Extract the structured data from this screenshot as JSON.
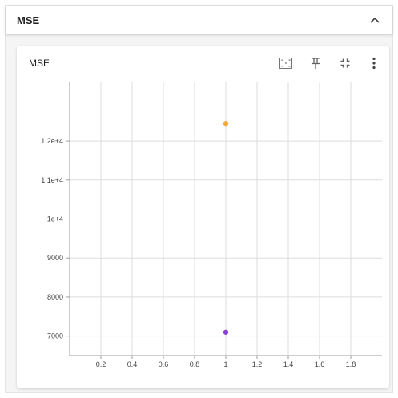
{
  "section": {
    "title": "MSE"
  },
  "card": {
    "title": "MSE",
    "tools": [
      {
        "name": "fit-domain",
        "icon": "fit-to-data-icon"
      },
      {
        "name": "pin",
        "icon": "pin-icon"
      },
      {
        "name": "collapse",
        "icon": "minimize-icon"
      },
      {
        "name": "more",
        "icon": "more-vertical-icon"
      }
    ]
  },
  "colors": {
    "series_orange": "#f4a93b",
    "series_purple": "#8c3fd8",
    "grid": "#dddddd",
    "axis": "#9e9e9e"
  },
  "chart_data": {
    "type": "scatter",
    "title": "MSE",
    "xlabel": "",
    "ylabel": "",
    "xlim": [
      0,
      2
    ],
    "ylim": [
      6500,
      13500
    ],
    "x_ticks": [
      {
        "value": 0.2,
        "label": "0.2"
      },
      {
        "value": 0.4,
        "label": "0.4"
      },
      {
        "value": 0.6,
        "label": "0.6"
      },
      {
        "value": 0.8,
        "label": "0.8"
      },
      {
        "value": 1.0,
        "label": "1"
      },
      {
        "value": 1.2,
        "label": "1.2"
      },
      {
        "value": 1.4,
        "label": "1.4"
      },
      {
        "value": 1.6,
        "label": "1.6"
      },
      {
        "value": 1.8,
        "label": "1.8"
      }
    ],
    "y_ticks": [
      {
        "value": 7000,
        "label": "7000"
      },
      {
        "value": 8000,
        "label": "8000"
      },
      {
        "value": 9000,
        "label": "9000"
      },
      {
        "value": 10000,
        "label": "1e+4"
      },
      {
        "value": 11000,
        "label": "1.1e+4"
      },
      {
        "value": 12000,
        "label": "1.2e+4"
      }
    ],
    "grid": true,
    "series": [
      {
        "color": "#f4a93b",
        "points": [
          {
            "x": 1,
            "y": 12450
          }
        ]
      },
      {
        "color": "#8c3fd8",
        "points": [
          {
            "x": 1,
            "y": 7100
          }
        ]
      }
    ]
  }
}
